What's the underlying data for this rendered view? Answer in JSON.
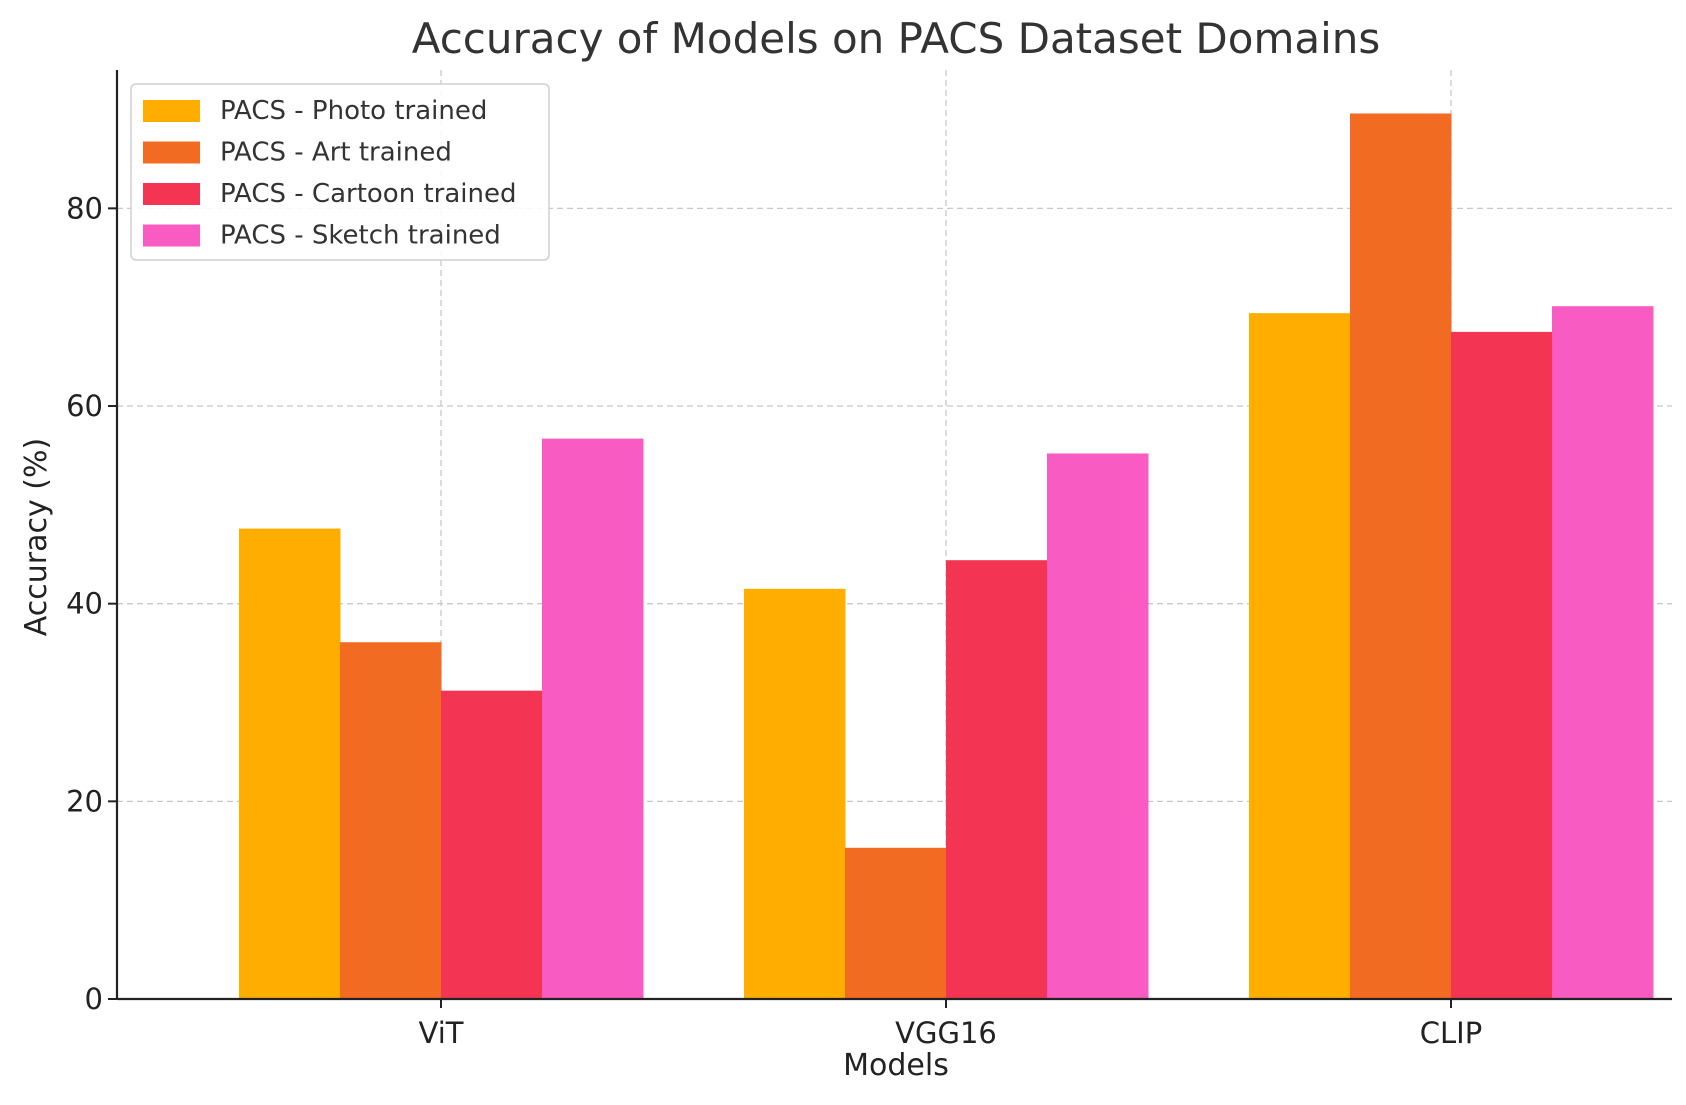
{
  "chart_data": {
    "type": "bar",
    "title": "Accuracy of Models on PACS Dataset Domains",
    "xlabel": "Models",
    "ylabel": "Accuracy (%)",
    "categories": [
      "ViT",
      "VGG16",
      "CLIP"
    ],
    "ylim": [
      0,
      94
    ],
    "yticks": [
      0,
      20,
      40,
      60,
      80
    ],
    "grid": true,
    "legend_position": "top-left",
    "series": [
      {
        "name": "PACS - Photo trained",
        "color": "#FFAE00",
        "values": [
          47.6,
          41.5,
          69.4
        ]
      },
      {
        "name": "PACS - Art trained",
        "color": "#F26B22",
        "values": [
          36.1,
          15.3,
          89.6
        ]
      },
      {
        "name": "PACS - Cartoon trained",
        "color": "#F43453",
        "values": [
          31.2,
          44.4,
          67.5
        ]
      },
      {
        "name": "PACS - Sketch trained",
        "color": "#F85BC1",
        "values": [
          56.7,
          55.2,
          70.1
        ]
      }
    ]
  }
}
